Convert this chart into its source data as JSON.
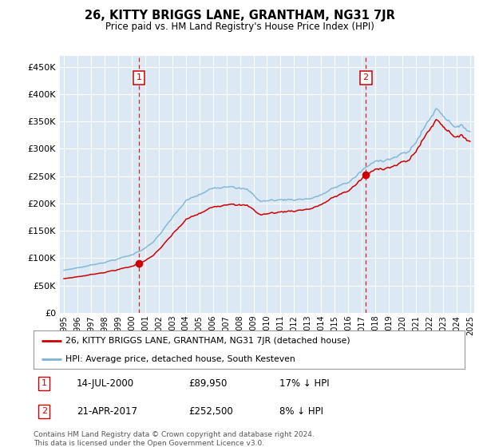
{
  "title": "26, KITTY BRIGGS LANE, GRANTHAM, NG31 7JR",
  "subtitle": "Price paid vs. HM Land Registry's House Price Index (HPI)",
  "ylim": [
    0,
    470000
  ],
  "yticks": [
    0,
    50000,
    100000,
    150000,
    200000,
    250000,
    300000,
    350000,
    400000,
    450000
  ],
  "ytick_labels": [
    "£0",
    "£50K",
    "£100K",
    "£150K",
    "£200K",
    "£250K",
    "£300K",
    "£350K",
    "£400K",
    "£450K"
  ],
  "sale1_year": 2000.54,
  "sale1_price": 89950,
  "sale2_year": 2017.29,
  "sale2_price": 252500,
  "hpi_color": "#7ab3d4",
  "price_color": "#cc0000",
  "vline_color": "#cc0000",
  "bg_color": "#dce9f5",
  "grid_color": "#ffffff",
  "legend_label_price": "26, KITTY BRIGGS LANE, GRANTHAM, NG31 7JR (detached house)",
  "legend_label_hpi": "HPI: Average price, detached house, South Kesteven",
  "marker1_date": "14-JUL-2000",
  "marker1_price": "£89,950",
  "marker1_hpi": "17% ↓ HPI",
  "marker2_date": "21-APR-2017",
  "marker2_price": "£252,500",
  "marker2_hpi": "8% ↓ HPI",
  "footer": "Contains HM Land Registry data © Crown copyright and database right 2024.\nThis data is licensed under the Open Government Licence v3.0."
}
